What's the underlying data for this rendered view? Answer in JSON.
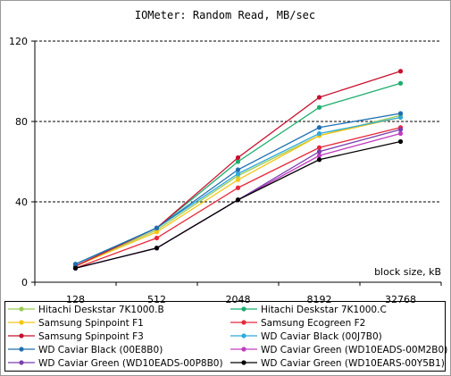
{
  "chart_data": {
    "type": "line",
    "title": "IOMeter: Random  Read, MB/sec",
    "xlabel": "block size, kB",
    "ylabel": "",
    "categories": [
      "128",
      "512",
      "2048",
      "8192",
      "32768"
    ],
    "ylim": [
      0,
      120
    ],
    "yticks": [
      0,
      40,
      80,
      120
    ],
    "grid": "horizontal-dashed",
    "legend_position": "bottom",
    "series": [
      {
        "name": "Hitachi Deskstar 7K1000.B",
        "color": "#9acd55",
        "values": [
          8,
          26,
          53,
          73,
          83
        ]
      },
      {
        "name": "Hitachi Deskstar 7K1000.C",
        "color": "#1fae6e",
        "values": [
          9,
          27,
          60,
          87,
          99
        ]
      },
      {
        "name": "Samsung Spinpoint F1",
        "color": "#f5c518",
        "values": [
          8,
          25,
          51,
          73,
          82
        ]
      },
      {
        "name": "Samsung Ecogreen F2",
        "color": "#e8283a",
        "values": [
          7,
          22,
          47,
          67,
          77
        ]
      },
      {
        "name": "Samsung Spinpoint F3",
        "color": "#c8102e",
        "values": [
          8,
          27,
          62,
          92,
          105
        ]
      },
      {
        "name": "WD Caviar Black (00J7B0)",
        "color": "#2eaadc",
        "values": [
          9,
          27,
          54,
          74,
          82
        ]
      },
      {
        "name": "WD Caviar Black (00E8B0)",
        "color": "#1f6fb2",
        "values": [
          9,
          27,
          56,
          77,
          84
        ]
      },
      {
        "name": "WD Caviar Green (WD10EADS-00M2B0)",
        "color": "#c03cc0",
        "values": [
          7,
          17,
          41,
          63,
          74
        ]
      },
      {
        "name": "WD Caviar Green (WD10EADS-00P8B0)",
        "color": "#7a3fb0",
        "values": [
          7,
          17,
          41,
          65,
          76
        ]
      },
      {
        "name": "WD Caviar Green (WD10EARS-00Y5B1)",
        "color": "#000000",
        "values": [
          7,
          17,
          41,
          61,
          70
        ]
      }
    ]
  }
}
